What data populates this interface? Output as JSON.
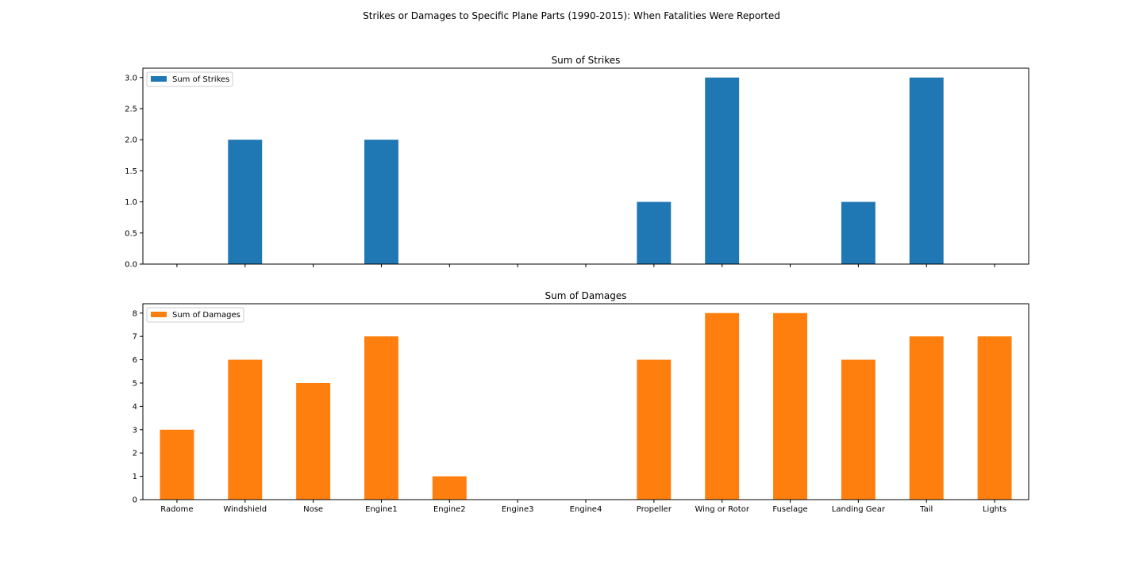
{
  "figure": {
    "suptitle": "Strikes or Damages to Specific Plane Parts (1990-2015): When Fatalities Were Reported"
  },
  "chart_data": [
    {
      "type": "bar",
      "title": "Sum of Strikes",
      "categories": [
        "Radome",
        "Windshield",
        "Nose",
        "Engine1",
        "Engine2",
        "Engine3",
        "Engine4",
        "Propeller",
        "Wing or Rotor",
        "Fuselage",
        "Landing Gear",
        "Tail",
        "Lights"
      ],
      "series": [
        {
          "name": "Sum of Strikes",
          "values": [
            0,
            2,
            0,
            2,
            0,
            0,
            0,
            1,
            3,
            0,
            1,
            3,
            0
          ],
          "color": "#1f77b4"
        }
      ],
      "ylim": [
        0,
        3.15
      ],
      "yticks": [
        "0.0",
        "0.5",
        "1.0",
        "1.5",
        "2.0",
        "2.5",
        "3.0"
      ],
      "show_xticklabels": false,
      "legend": "upper-left",
      "grid": false
    },
    {
      "type": "bar",
      "title": "Sum of Damages",
      "categories": [
        "Radome",
        "Windshield",
        "Nose",
        "Engine1",
        "Engine2",
        "Engine3",
        "Engine4",
        "Propeller",
        "Wing or Rotor",
        "Fuselage",
        "Landing Gear",
        "Tail",
        "Lights"
      ],
      "series": [
        {
          "name": "Sum of Damages",
          "values": [
            3,
            6,
            5,
            7,
            1,
            0,
            0,
            6,
            8,
            8,
            6,
            7,
            7
          ],
          "color": "#ff7f0e"
        }
      ],
      "ylim": [
        0,
        8.4
      ],
      "yticks": [
        "0",
        "1",
        "2",
        "3",
        "4",
        "5",
        "6",
        "7",
        "8"
      ],
      "show_xticklabels": true,
      "legend": "upper-left",
      "grid": false
    }
  ]
}
